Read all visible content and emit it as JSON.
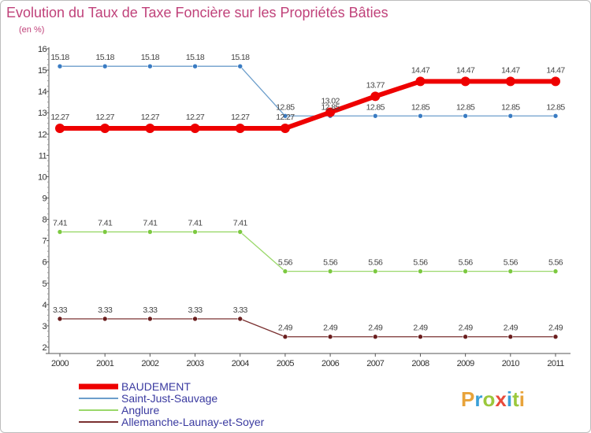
{
  "chart_data": {
    "type": "line",
    "title": "Evolution du Taux de Taxe Foncière sur les Propriétés Bâties",
    "unit_label": "(en %)",
    "ylim": [
      2,
      16
    ],
    "y_ticks": [
      "2",
      "3",
      "4",
      "5",
      "6",
      "7",
      "8",
      "9",
      "10",
      "11",
      "12",
      "13",
      "14",
      "15",
      "16"
    ],
    "x": [
      "2000",
      "2001",
      "2002",
      "2003",
      "2004",
      "2005",
      "2006",
      "2007",
      "2008",
      "2009",
      "2010",
      "2011"
    ],
    "series": [
      {
        "name": "Saint-Just-Sauvage",
        "color": "#6c9ecb",
        "point_color": "#3a7cc3",
        "values": [
          15.18,
          15.18,
          15.18,
          15.18,
          15.18,
          12.85,
          12.85,
          12.85,
          12.85,
          12.85,
          12.85,
          12.85
        ],
        "labels": [
          "15.18",
          "15.18",
          "15.18",
          "15.18",
          "15.18",
          "12.85",
          "12.85",
          "12.85",
          "12.85",
          "12.85",
          "12.85",
          "12.85"
        ]
      },
      {
        "name": "Anglure",
        "color": "#9ad86a",
        "point_color": "#7cc940",
        "values": [
          7.41,
          7.41,
          7.41,
          7.41,
          7.41,
          5.56,
          5.56,
          5.56,
          5.56,
          5.56,
          5.56,
          5.56
        ],
        "labels": [
          "7.41",
          "7.41",
          "7.41",
          "7.41",
          "7.41",
          "5.56",
          "5.56",
          "5.56",
          "5.56",
          "5.56",
          "5.56",
          "5.56"
        ]
      },
      {
        "name": "Allemanche-Launay-et-Soyer",
        "color": "#7a3030",
        "point_color": "#6b1f1f",
        "values": [
          3.33,
          3.33,
          3.33,
          3.33,
          3.33,
          2.49,
          2.49,
          2.49,
          2.49,
          2.49,
          2.49,
          2.49
        ],
        "labels": [
          "3.33",
          "3.33",
          "3.33",
          "3.33",
          "3.33",
          "2.49",
          "2.49",
          "2.49",
          "2.49",
          "2.49",
          "2.49",
          "2.49"
        ]
      },
      {
        "name": "BAUDEMENT",
        "color": "#ee0000",
        "point_color": "#ee0000",
        "values": [
          12.27,
          12.27,
          12.27,
          12.27,
          12.27,
          12.27,
          13.02,
          13.77,
          14.47,
          14.47,
          14.47,
          14.47
        ],
        "labels": [
          "12.27",
          "12.27",
          "12.27",
          "12.27",
          "12.27",
          "12.27",
          "13.02",
          "13.77",
          "14.47",
          "14.47",
          "14.47",
          "14.47"
        ]
      }
    ],
    "legend_order": [
      "BAUDEMENT",
      "Saint-Just-Sauvage",
      "Anglure",
      "Allemanche-Launay-et-Soyer"
    ],
    "legend_colors": [
      "#ee0000",
      "#6c9ecb",
      "#9ad86a",
      "#7a3030"
    ],
    "grid": false,
    "legend_position": "bottom-left"
  },
  "branding": {
    "logo_letters": [
      "P",
      "r",
      "o",
      "x",
      "i",
      "t",
      "i"
    ],
    "logo_colors": [
      "#e8a33a",
      "#3aa0d8",
      "#9bc83c",
      "#e84a3a",
      "#3aa0d8",
      "#9bc83c",
      "#e8a33a"
    ]
  }
}
